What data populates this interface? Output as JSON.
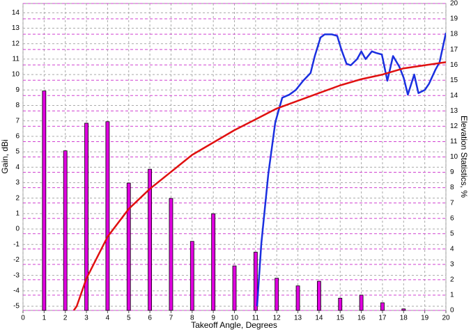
{
  "chart_data": {
    "type": "combo",
    "x_label": "Takeoff Angle, Degrees",
    "y_label": "Gain, dBi",
    "y2_label": "Elevation Statistics, %",
    "xlim": [
      0,
      20
    ],
    "xticks": [
      0,
      1,
      2,
      3,
      4,
      5,
      6,
      7,
      8,
      9,
      10,
      11,
      12,
      13,
      14,
      15,
      16,
      17,
      18,
      19,
      20
    ],
    "ylim": [
      -5.27,
      14.6
    ],
    "yticks": [
      -5,
      -4,
      -3,
      -2,
      -1,
      0,
      1,
      2,
      3,
      4,
      5,
      6,
      7,
      8,
      9,
      10,
      11,
      12,
      13,
      14
    ],
    "y2lim": [
      0,
      20
    ],
    "y2ticks": [
      0,
      1,
      2,
      3,
      4,
      5,
      6,
      7,
      8,
      9,
      10,
      11,
      12,
      13,
      14,
      15,
      16,
      17,
      18,
      19,
      20
    ],
    "grid": true,
    "series": [
      {
        "type": "bar",
        "axis": "y2",
        "color": "#e000e0",
        "x": [
          1,
          2,
          3,
          4,
          5,
          6,
          7,
          8,
          9,
          10,
          11,
          12,
          13,
          14,
          15,
          16,
          17,
          18
        ],
        "values": [
          14.3,
          10.4,
          12.2,
          12.3,
          8.3,
          9.2,
          7.3,
          4.5,
          6.3,
          2.9,
          3.8,
          2.1,
          1.6,
          1.9,
          0.8,
          1.0,
          0.5,
          0.1
        ]
      },
      {
        "type": "line",
        "color": "#1a2fe0",
        "x": [
          11.07,
          11.27,
          11.6,
          11.93,
          12.26,
          12.6,
          12.9,
          13.25,
          13.6,
          13.8,
          14.07,
          14.27,
          14.6,
          14.86,
          15.06,
          15.3,
          15.5,
          15.8,
          16,
          16.2,
          16.5,
          16.7,
          16.97,
          17.23,
          17.5,
          17.8,
          18.0,
          18.2,
          18.5,
          18.7,
          19,
          19.2,
          19.5,
          19.7,
          20
        ],
        "values": [
          -5,
          -0.95,
          3.55,
          6.9,
          8.5,
          8.7,
          9.0,
          9.6,
          10.1,
          11.2,
          12.4,
          12.6,
          12.6,
          12.5,
          11.6,
          10.7,
          10.6,
          11,
          11.5,
          11,
          11.5,
          11.4,
          11.3,
          9.6,
          11.2,
          10.5,
          9.8,
          8.7,
          10,
          8.8,
          9,
          9.4,
          10.3,
          10.8,
          12.7
        ]
      },
      {
        "type": "line",
        "color": "#e01010",
        "x": [
          2.4,
          2.54,
          3,
          4,
          5,
          6,
          7,
          8,
          9,
          10,
          11,
          12,
          13,
          14,
          15,
          16,
          17,
          18,
          19,
          20
        ],
        "values": [
          -5.27,
          -5,
          -3.2,
          -0.5,
          1.3,
          2.6,
          3.7,
          4.8,
          5.6,
          6.4,
          7.1,
          7.8,
          8.3,
          8.8,
          9.3,
          9.7,
          10.0,
          10.4,
          10.6,
          10.8
        ]
      }
    ]
  }
}
